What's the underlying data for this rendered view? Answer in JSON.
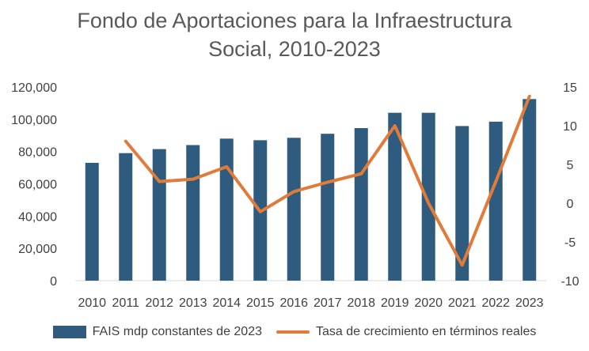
{
  "chart_data": {
    "type": "bar+line",
    "title_line1": "Fondo de Aportaciones para la Infraestructura",
    "title_line2": "Social, 2010-2023",
    "categories": [
      "2010",
      "2011",
      "2012",
      "2013",
      "2014",
      "2015",
      "2016",
      "2017",
      "2018",
      "2019",
      "2020",
      "2021",
      "2022",
      "2023"
    ],
    "series": [
      {
        "name": "FAIS mdp constantes de 2023",
        "type": "bar",
        "axis": "left",
        "color": "#2e5b7e",
        "values": [
          73000,
          79000,
          81500,
          84000,
          88000,
          87000,
          88500,
          91000,
          94500,
          104000,
          104000,
          95800,
          98500,
          112500
        ]
      },
      {
        "name": "Tasa de crecimiento en términos reales",
        "type": "line",
        "axis": "right",
        "color": "#e07b39",
        "values": [
          null,
          8.0,
          2.8,
          3.1,
          4.7,
          -1.1,
          1.5,
          2.7,
          3.8,
          10.0,
          0.0,
          -8.0,
          2.8,
          13.8
        ]
      }
    ],
    "y_left": {
      "min": 0,
      "max": 120000,
      "step": 20000,
      "tick_labels": [
        "0",
        "20,000",
        "40,000",
        "60,000",
        "80,000",
        "100,000",
        "120,000"
      ]
    },
    "y_right": {
      "min": -10,
      "max": 15,
      "step": 5,
      "tick_labels": [
        "-10",
        "-5",
        "0",
        "5",
        "10",
        "15"
      ]
    },
    "legend_position": "bottom",
    "grid": false
  }
}
